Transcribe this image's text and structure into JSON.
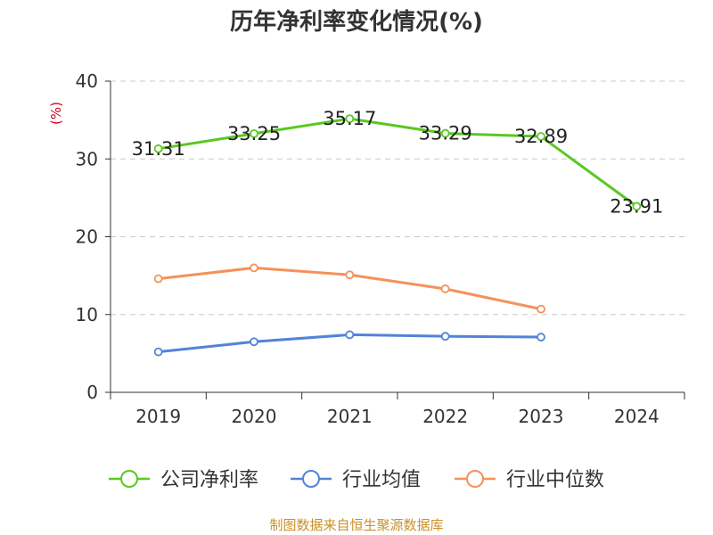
{
  "chart_data": {
    "type": "line",
    "title": "历年净利率变化情况(%)",
    "ylabel": "(%)",
    "xlabel": "",
    "ylim": [
      0,
      40
    ],
    "yticks": [
      0,
      10,
      20,
      30,
      40
    ],
    "categories": [
      "2019",
      "2020",
      "2021",
      "2022",
      "2023",
      "2024"
    ],
    "grid": true,
    "legend_position": "bottom",
    "series": [
      {
        "name": "公司净利率",
        "color": "#5ac821",
        "values": [
          31.31,
          33.25,
          35.17,
          33.29,
          32.89,
          23.91
        ],
        "labels": [
          "31.31",
          "33.25",
          "35.17",
          "33.29",
          "32.89",
          "23.91"
        ]
      },
      {
        "name": "行业均值",
        "color": "#5283d8",
        "values": [
          5.2,
          6.5,
          7.4,
          7.2,
          7.1,
          null
        ]
      },
      {
        "name": "行业中位数",
        "color": "#f5915a",
        "values": [
          14.6,
          16.0,
          15.1,
          13.3,
          10.7,
          null
        ]
      }
    ],
    "source": "制图数据来自恒生聚源数据库"
  }
}
